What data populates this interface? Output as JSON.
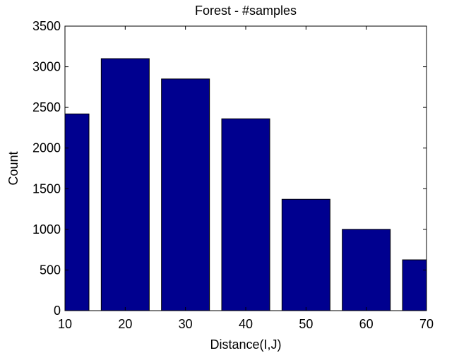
{
  "colors": {
    "bar": "#00008F",
    "axis": "#000000",
    "background": "#ffffff"
  },
  "chart_data": {
    "type": "bar",
    "title": "Forest - #samples",
    "xlabel": "Distance(I,J)",
    "ylabel": "Count",
    "categories": [
      "10",
      "20",
      "30",
      "40",
      "50",
      "60",
      "70"
    ],
    "x": [
      10,
      20,
      30,
      40,
      50,
      60,
      70
    ],
    "values": [
      2420,
      3100,
      2850,
      2360,
      1370,
      1000,
      625
    ],
    "xlim": [
      10,
      70
    ],
    "ylim": [
      0,
      3500
    ],
    "xticks": [
      "10",
      "20",
      "30",
      "40",
      "50",
      "60",
      "70"
    ],
    "yticks": [
      "0",
      "500",
      "1000",
      "1500",
      "2000",
      "2500",
      "3000",
      "3500"
    ],
    "grid": false,
    "box": true
  }
}
